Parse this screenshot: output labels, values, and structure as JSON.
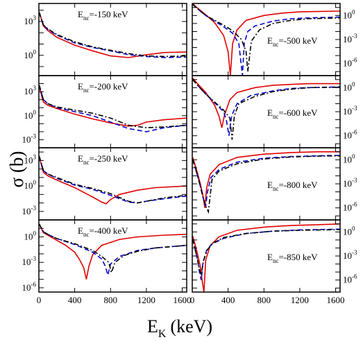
{
  "figure": {
    "ylabel": "σ (b)",
    "xlabel": "E",
    "xlabel_sub": "K",
    "xlabel_unit": "(keV)"
  },
  "colors": {
    "solid": "#e00000",
    "dashed": "#0000cc",
    "dashdot": "#000000",
    "frame": "#000000"
  },
  "chart_data": [
    {
      "type": "line",
      "label_pre": "E",
      "label_sub": "nc",
      "label_post": "=-150 keV",
      "x_ticks": [
        0,
        400,
        800,
        1200,
        1600
      ],
      "y_ticks": [
        "10^0",
        "10^3"
      ],
      "y_tick_side": "left",
      "xlim": [
        0,
        1650
      ],
      "ylim_log10": [
        -1.8,
        4.6
      ],
      "x_tick_labels_shown": false,
      "label_anchor": "left",
      "series": [
        {
          "style": "solid",
          "x": [
            5,
            50,
            100,
            200,
            400,
            600,
            800,
            1000,
            1200,
            1400,
            1650
          ],
          "log10_y": [
            3.8,
            2.6,
            2.2,
            1.6,
            0.9,
            0.4,
            -0.05,
            -0.2,
            0.05,
            0.25,
            0.3
          ]
        },
        {
          "style": "dashed",
          "x": [
            5,
            50,
            100,
            200,
            400,
            600,
            800,
            1000,
            1200,
            1400,
            1650
          ],
          "log10_y": [
            3.8,
            2.7,
            2.3,
            1.8,
            1.1,
            0.7,
            0.4,
            0.05,
            -0.1,
            -0.2,
            -0.15
          ]
        },
        {
          "style": "dashdot",
          "x": [
            5,
            50,
            100,
            200,
            400,
            600,
            800,
            1000,
            1200,
            1400,
            1650
          ],
          "log10_y": [
            3.8,
            2.7,
            2.35,
            1.85,
            1.2,
            0.75,
            0.45,
            0.15,
            -0.05,
            -0.1,
            -0.05
          ]
        }
      ]
    },
    {
      "type": "line",
      "label_pre": "E",
      "label_sub": "nc",
      "label_post": "=-500 keV",
      "x_ticks": [
        0,
        400,
        800,
        1200,
        1600
      ],
      "y_ticks": [
        "10^-6",
        "10^-3",
        "10^0"
      ],
      "y_tick_side": "right",
      "xlim": [
        0,
        1650
      ],
      "ylim_log10": [
        -7.5,
        1.5
      ],
      "x_tick_labels_shown": false,
      "label_anchor": "right",
      "series": [
        {
          "style": "solid",
          "x": [
            5,
            50,
            150,
            250,
            350,
            400,
            425,
            450,
            500,
            600,
            800,
            1000,
            1200,
            1400,
            1650
          ],
          "log10_y": [
            1.5,
            1.0,
            0.1,
            -0.9,
            -2.5,
            -4.5,
            -7.5,
            -3.5,
            -1.8,
            -0.6,
            0.0,
            0.3,
            0.45,
            0.5,
            0.55
          ]
        },
        {
          "style": "dashed",
          "x": [
            5,
            50,
            150,
            250,
            350,
            450,
            520,
            560,
            580,
            620,
            700,
            900,
            1100,
            1300,
            1650
          ],
          "log10_y": [
            1.4,
            0.9,
            0.0,
            -0.7,
            -1.4,
            -2.2,
            -3.5,
            -7.5,
            -3.5,
            -2.0,
            -1.3,
            -0.7,
            -0.4,
            -0.3,
            -0.2
          ]
        },
        {
          "style": "dashdot",
          "x": [
            5,
            50,
            150,
            250,
            350,
            450,
            550,
            600,
            620,
            660,
            750,
            900,
            1100,
            1300,
            1650
          ],
          "log10_y": [
            1.4,
            0.9,
            0.0,
            -0.6,
            -1.2,
            -1.9,
            -3.0,
            -4.5,
            -7.0,
            -3.2,
            -1.8,
            -1.0,
            -0.6,
            -0.4,
            -0.3
          ]
        }
      ]
    },
    {
      "type": "line",
      "label_pre": "E",
      "label_sub": "nc",
      "label_post": "=-200 keV",
      "x_ticks": [
        0,
        400,
        800,
        1200,
        1600
      ],
      "y_ticks": [
        "10^-3",
        "10^0",
        "10^3"
      ],
      "y_tick_side": "left",
      "xlim": [
        0,
        1650
      ],
      "ylim_log10": [
        -4.0,
        5.0
      ],
      "x_tick_labels_shown": false,
      "label_anchor": "left",
      "series": [
        {
          "style": "solid",
          "x": [
            5,
            50,
            100,
            200,
            400,
            600,
            800,
            1000,
            1100,
            1200,
            1400,
            1650
          ],
          "log10_y": [
            3.6,
            1.7,
            1.3,
            0.9,
            0.2,
            -0.4,
            -0.9,
            -1.3,
            -1.2,
            -0.8,
            -0.5,
            -0.3
          ]
        },
        {
          "style": "dashed",
          "x": [
            5,
            50,
            100,
            200,
            400,
            600,
            800,
            1000,
            1200,
            1400,
            1650
          ],
          "log10_y": [
            3.8,
            2.0,
            1.5,
            1.0,
            0.5,
            0.0,
            -0.8,
            -1.6,
            -2.0,
            -1.5,
            -1.2
          ]
        },
        {
          "style": "dashdot",
          "x": [
            5,
            50,
            100,
            200,
            400,
            600,
            800,
            1000,
            1200,
            1400,
            1650
          ],
          "log10_y": [
            3.8,
            2.0,
            1.5,
            1.1,
            0.7,
            0.3,
            -0.3,
            -1.2,
            -1.5,
            -1.4,
            -1.2
          ]
        }
      ]
    },
    {
      "type": "line",
      "label_pre": "E",
      "label_sub": "nc",
      "label_post": "=-600 keV",
      "x_ticks": [
        0,
        400,
        800,
        1200,
        1600
      ],
      "y_ticks": [
        "10^-6",
        "10^-3",
        "10^0"
      ],
      "y_tick_side": "right",
      "xlim": [
        0,
        1650
      ],
      "ylim_log10": [
        -7.5,
        1.5
      ],
      "x_tick_labels_shown": false,
      "label_anchor": "right",
      "series": [
        {
          "style": "solid",
          "x": [
            5,
            50,
            150,
            250,
            300,
            330,
            360,
            420,
            500,
            700,
            900,
            1100,
            1300,
            1650
          ],
          "log10_y": [
            1.2,
            0.6,
            -0.6,
            -2.2,
            -3.6,
            -5.0,
            -3.4,
            -1.5,
            -0.6,
            0.0,
            0.3,
            0.4,
            0.5,
            0.5
          ]
        },
        {
          "style": "dashed",
          "x": [
            5,
            50,
            150,
            250,
            350,
            380,
            410,
            440,
            500,
            650,
            900,
            1100,
            1300,
            1650
          ],
          "log10_y": [
            1.0,
            0.4,
            -0.8,
            -1.9,
            -3.0,
            -4.0,
            -6.0,
            -3.5,
            -2.0,
            -1.0,
            -0.4,
            -0.1,
            0.0,
            0.1
          ]
        },
        {
          "style": "dashdot",
          "x": [
            5,
            50,
            150,
            250,
            350,
            420,
            445,
            470,
            520,
            700,
            900,
            1100,
            1300,
            1650
          ],
          "log10_y": [
            1.0,
            0.4,
            -0.8,
            -1.8,
            -2.8,
            -3.8,
            -6.5,
            -3.5,
            -2.0,
            -1.1,
            -0.5,
            -0.2,
            0.0,
            0.05
          ]
        }
      ]
    },
    {
      "type": "line",
      "label_pre": "E",
      "label_sub": "nc",
      "label_post": "=-250 keV",
      "x_ticks": [
        0,
        400,
        800,
        1200,
        1600
      ],
      "y_ticks": [
        "10^-3",
        "10^0",
        "10^3"
      ],
      "y_tick_side": "left",
      "xlim": [
        0,
        1650
      ],
      "ylim_log10": [
        -4.0,
        4.5
      ],
      "x_tick_labels_shown": false,
      "label_anchor": "left",
      "series": [
        {
          "style": "solid",
          "x": [
            5,
            50,
            100,
            200,
            400,
            600,
            700,
            750,
            800,
            900,
            1100,
            1300,
            1650
          ],
          "log10_y": [
            3.4,
            1.6,
            1.2,
            0.7,
            -0.2,
            -1.3,
            -1.9,
            -2.1,
            -1.6,
            -1.0,
            -0.5,
            -0.2,
            0.0
          ]
        },
        {
          "style": "dashed",
          "x": [
            5,
            50,
            100,
            200,
            400,
            600,
            800,
            1000,
            1100,
            1200,
            1400,
            1650
          ],
          "log10_y": [
            3.5,
            1.8,
            1.4,
            0.9,
            0.1,
            -0.4,
            -1.1,
            -1.9,
            -2.0,
            -1.8,
            -1.5,
            -1.2
          ]
        },
        {
          "style": "dashdot",
          "x": [
            5,
            50,
            100,
            200,
            400,
            600,
            800,
            1000,
            1100,
            1200,
            1400,
            1650
          ],
          "log10_y": [
            3.5,
            1.8,
            1.4,
            1.0,
            0.2,
            -0.3,
            -0.9,
            -1.8,
            -2.0,
            -1.8,
            -1.4,
            -1.1
          ]
        }
      ]
    },
    {
      "type": "line",
      "label_pre": "E",
      "label_sub": "nc",
      "label_post": "=-800 keV",
      "x_ticks": [
        0,
        400,
        800,
        1200,
        1600
      ],
      "y_ticks": [
        "10^-6",
        "10^-3",
        "10^0"
      ],
      "y_tick_side": "right",
      "xlim": [
        0,
        1650
      ],
      "ylim_log10": [
        -7.5,
        1.5
      ],
      "x_tick_labels_shown": false,
      "label_anchor": "right",
      "series": [
        {
          "style": "solid",
          "x": [
            5,
            30,
            60,
            90,
            120,
            140,
            160,
            200,
            300,
            500,
            800,
            1100,
            1400,
            1650
          ],
          "log10_y": [
            0.3,
            -0.6,
            -1.7,
            -3.0,
            -4.5,
            -6.0,
            -3.5,
            -1.8,
            -0.6,
            0.3,
            0.7,
            0.9,
            1.0,
            1.0
          ]
        },
        {
          "style": "dashed",
          "x": [
            5,
            30,
            60,
            90,
            120,
            150,
            170,
            210,
            300,
            500,
            800,
            1100,
            1400,
            1650
          ],
          "log10_y": [
            0.0,
            -0.9,
            -2.0,
            -3.3,
            -4.7,
            -5.8,
            -4.0,
            -2.2,
            -1.2,
            -0.3,
            0.2,
            0.4,
            0.5,
            0.55
          ]
        },
        {
          "style": "dashdot",
          "x": [
            5,
            30,
            60,
            90,
            120,
            150,
            180,
            220,
            300,
            500,
            800,
            1100,
            1400,
            1650
          ],
          "log10_y": [
            0.0,
            -0.9,
            -2.0,
            -3.3,
            -4.7,
            -5.8,
            -6.5,
            -2.5,
            -1.4,
            -0.5,
            0.1,
            0.35,
            0.45,
            0.5
          ]
        }
      ]
    },
    {
      "type": "line",
      "label_pre": "E",
      "label_sub": "nc",
      "label_post": "=-400 keV",
      "x_ticks": [
        0,
        400,
        800,
        1200,
        1600
      ],
      "y_ticks": [
        "10^-6",
        "10^-3",
        "10^0"
      ],
      "y_tick_side": "left",
      "xlim": [
        0,
        1650
      ],
      "ylim_log10": [
        -6.5,
        2.0
      ],
      "x_tick_labels_shown": true,
      "label_anchor": "left",
      "series": [
        {
          "style": "solid",
          "x": [
            5,
            50,
            100,
            200,
            300,
            400,
            450,
            500,
            530,
            560,
            600,
            700,
            900,
            1100,
            1400,
            1650
          ],
          "log10_y": [
            1.5,
            0.5,
            0.2,
            -0.4,
            -1.0,
            -1.8,
            -2.6,
            -3.6,
            -5.0,
            -3.4,
            -2.1,
            -1.0,
            -0.3,
            0.0,
            0.2,
            0.3
          ]
        },
        {
          "style": "dashed",
          "x": [
            5,
            50,
            100,
            200,
            400,
            600,
            700,
            740,
            770,
            800,
            900,
            1100,
            1300,
            1650
          ],
          "log10_y": [
            1.5,
            0.6,
            0.3,
            -0.2,
            -0.9,
            -1.8,
            -2.6,
            -3.4,
            -4.5,
            -3.2,
            -2.3,
            -1.6,
            -1.3,
            -1.0
          ]
        },
        {
          "style": "dashdot",
          "x": [
            5,
            50,
            100,
            200,
            400,
            600,
            700,
            780,
            810,
            850,
            950,
            1100,
            1300,
            1650
          ],
          "log10_y": [
            1.5,
            0.6,
            0.3,
            -0.2,
            -0.8,
            -1.6,
            -2.3,
            -3.0,
            -4.2,
            -3.0,
            -2.2,
            -1.7,
            -1.3,
            -1.0
          ]
        }
      ]
    },
    {
      "type": "line",
      "label_pre": "E",
      "label_sub": "nc",
      "label_post": "=-850 keV",
      "x_ticks": [
        0,
        400,
        800,
        1200,
        1600
      ],
      "y_ticks": [
        "10^-6",
        "10^-3",
        "10^0"
      ],
      "y_tick_side": "right",
      "xlim": [
        0,
        1650
      ],
      "ylim_log10": [
        -7.5,
        1.5
      ],
      "x_tick_labels_shown": true,
      "label_anchor": "right",
      "series": [
        {
          "style": "solid",
          "x": [
            5,
            30,
            60,
            90,
            110,
            130,
            150,
            200,
            300,
            500,
            800,
            1100,
            1400,
            1650
          ],
          "log10_y": [
            -0.5,
            -1.5,
            -2.8,
            -4.3,
            -6.0,
            -7.5,
            -3.5,
            -1.7,
            -0.6,
            0.2,
            0.6,
            0.8,
            0.9,
            1.0
          ]
        },
        {
          "style": "dashed",
          "x": [
            5,
            30,
            60,
            80,
            100,
            120,
            160,
            220,
            350,
            600,
            900,
            1200,
            1650
          ],
          "log10_y": [
            -0.9,
            -2.1,
            -3.5,
            -5.0,
            -6.0,
            -3.8,
            -2.3,
            -1.5,
            -0.8,
            -0.2,
            0.1,
            0.25,
            0.35
          ]
        },
        {
          "style": "dashdot",
          "x": [
            5,
            30,
            60,
            80,
            100,
            125,
            170,
            230,
            350,
            600,
            900,
            1200,
            1650
          ],
          "log10_y": [
            -0.9,
            -2.1,
            -3.5,
            -4.6,
            -5.4,
            -3.6,
            -2.2,
            -1.4,
            -0.7,
            -0.2,
            0.1,
            0.2,
            0.3
          ]
        }
      ]
    }
  ]
}
